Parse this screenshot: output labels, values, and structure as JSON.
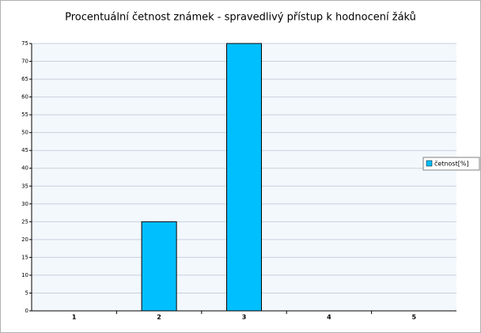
{
  "chart_data": {
    "type": "bar",
    "title": "Procentuální četnost známek - spravedlivý přístup k hodnocení žáků",
    "categories": [
      "1",
      "2",
      "3",
      "4",
      "5"
    ],
    "series": [
      {
        "name": "četnost[%]",
        "color": "#00bfff",
        "values": [
          0,
          25,
          75,
          0,
          0
        ]
      }
    ],
    "ylim": [
      0,
      75
    ],
    "yticks": [
      0,
      5,
      10,
      15,
      20,
      25,
      30,
      35,
      40,
      45,
      50,
      55,
      60,
      65,
      70,
      75
    ],
    "grid": true,
    "legend": "right"
  }
}
